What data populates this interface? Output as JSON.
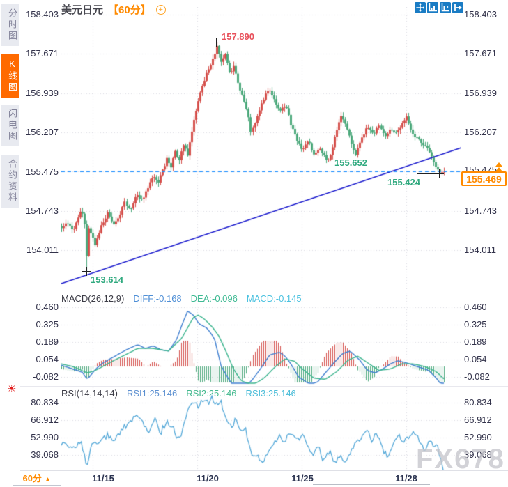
{
  "colors": {
    "accent_orange": "#ff8a00",
    "active_tab": "#ff6a00",
    "candle_up": "#d5504c",
    "candle_down": "#4da97c",
    "trendline": "#1414cc",
    "dashed_level": "#2090ff",
    "diff_line": "#3f7fd0",
    "dea_line": "#3bb48e",
    "hist_up": "#d5504c",
    "hist_down": "#4da97c",
    "rsi_line": "#54a8d8",
    "grid": "#d9d9e2",
    "toolbar_icon_bg": "#1a7cc4",
    "annotation_green": "#2fa97e",
    "annotation_red": "#e8505a"
  },
  "sidebar": {
    "tabs": [
      {
        "label": "分时图",
        "active": false
      },
      {
        "label": "K线图",
        "active": true
      },
      {
        "label": "闪电图",
        "active": false
      },
      {
        "label": "合约资料",
        "active": false
      }
    ],
    "settings_icon": "☀"
  },
  "header": {
    "title": "美元日元",
    "interval_tag": "【60分】",
    "add_icon": "+"
  },
  "toolbar": {
    "icons": [
      "pan-icon",
      "fit-x-icon",
      "fit-y-icon",
      "go-latest-icon"
    ]
  },
  "price_panel": {
    "axis_labels": [
      "158.403",
      "157.671",
      "156.939",
      "156.207",
      "155.475",
      "154.743",
      "154.011"
    ],
    "annotations": {
      "high": "157.890",
      "swing_low": "153.614",
      "support_low": "155.652",
      "last_low": "155.424"
    },
    "current_price": "155.469",
    "marked_level": "155.475"
  },
  "macd_panel": {
    "title": "MACD(26,12,9)",
    "diff_label": "DIFF:-0.168",
    "dea_label": "DEA:-0.096",
    "macd_label": "MACD:-0.145",
    "axis_labels": [
      "0.460",
      "0.325",
      "0.189",
      "0.054",
      "-0.082"
    ]
  },
  "rsi_panel": {
    "title": "RSI(14,14,14)",
    "rsi1_label": "RSI1:25.146",
    "rsi2_label": "RSI2:25.146",
    "rsi3_label": "RSI3:25.146",
    "axis_labels": [
      "80.834",
      "66.912",
      "52.990",
      "39.068"
    ]
  },
  "footer": {
    "interval_label": "60分",
    "interval_arrow": "▲",
    "dates": [
      "11/15",
      "11/20",
      "11/25",
      "11/28"
    ]
  },
  "watermark": "FX678",
  "chart_data": [
    {
      "type": "candlestick",
      "title": "美元日元 60分",
      "x_dates": [
        "11/15",
        "11/20",
        "11/25",
        "11/28"
      ],
      "y_ticks": [
        158.403,
        157.671,
        156.939,
        156.207,
        155.475,
        154.743,
        154.011
      ],
      "ylim": [
        153.387,
        158.53
      ],
      "num_candles": 183,
      "key_points": {
        "high": 157.89,
        "swing_low": 153.614,
        "support_low": 155.652,
        "last_low": 155.424,
        "last_close": 155.469,
        "dashed_level": 155.475
      },
      "trendline": [
        [
          0.0,
          153.387
        ],
        [
          1.0,
          155.921
        ]
      ],
      "close_anchors": [
        [
          0.0,
          154.42
        ],
        [
          0.015,
          154.52
        ],
        [
          0.03,
          154.36
        ],
        [
          0.042,
          154.58
        ],
        [
          0.052,
          154.78
        ],
        [
          0.06,
          154.48
        ],
        [
          0.066,
          154.4
        ],
        [
          0.068,
          153.9
        ],
        [
          0.075,
          154.35
        ],
        [
          0.088,
          154.12
        ],
        [
          0.105,
          154.48
        ],
        [
          0.122,
          154.72
        ],
        [
          0.135,
          154.5
        ],
        [
          0.15,
          154.62
        ],
        [
          0.165,
          154.9
        ],
        [
          0.18,
          154.78
        ],
        [
          0.195,
          155.06
        ],
        [
          0.21,
          154.94
        ],
        [
          0.225,
          155.18
        ],
        [
          0.24,
          155.38
        ],
        [
          0.252,
          155.26
        ],
        [
          0.265,
          155.52
        ],
        [
          0.275,
          155.72
        ],
        [
          0.285,
          155.56
        ],
        [
          0.297,
          155.86
        ],
        [
          0.307,
          155.68
        ],
        [
          0.32,
          156.0
        ],
        [
          0.33,
          155.78
        ],
        [
          0.345,
          156.42
        ],
        [
          0.36,
          156.88
        ],
        [
          0.375,
          157.22
        ],
        [
          0.39,
          157.48
        ],
        [
          0.4,
          157.66
        ],
        [
          0.408,
          157.82
        ],
        [
          0.418,
          157.5
        ],
        [
          0.428,
          157.68
        ],
        [
          0.44,
          157.3
        ],
        [
          0.452,
          157.45
        ],
        [
          0.465,
          157.05
        ],
        [
          0.478,
          156.8
        ],
        [
          0.49,
          156.45
        ],
        [
          0.496,
          156.16
        ],
        [
          0.51,
          156.52
        ],
        [
          0.525,
          156.78
        ],
        [
          0.54,
          157.02
        ],
        [
          0.555,
          156.84
        ],
        [
          0.57,
          156.58
        ],
        [
          0.585,
          156.72
        ],
        [
          0.6,
          156.34
        ],
        [
          0.615,
          156.08
        ],
        [
          0.63,
          155.86
        ],
        [
          0.645,
          156.06
        ],
        [
          0.66,
          155.78
        ],
        [
          0.675,
          155.92
        ],
        [
          0.69,
          155.72
        ],
        [
          0.7,
          155.68
        ],
        [
          0.715,
          156.12
        ],
        [
          0.73,
          156.55
        ],
        [
          0.742,
          156.35
        ],
        [
          0.755,
          156.08
        ],
        [
          0.768,
          155.78
        ],
        [
          0.782,
          156.06
        ],
        [
          0.8,
          156.3
        ],
        [
          0.815,
          156.18
        ],
        [
          0.83,
          156.32
        ],
        [
          0.845,
          156.14
        ],
        [
          0.86,
          156.28
        ],
        [
          0.875,
          156.18
        ],
        [
          0.89,
          156.36
        ],
        [
          0.9,
          156.5
        ],
        [
          0.915,
          156.22
        ],
        [
          0.93,
          156.08
        ],
        [
          0.945,
          155.98
        ],
        [
          0.96,
          155.86
        ],
        [
          0.975,
          155.62
        ],
        [
          0.99,
          155.46
        ],
        [
          1.0,
          155.47
        ]
      ]
    },
    {
      "type": "bar",
      "name": "MACD(26,12,9)",
      "diff": -0.168,
      "dea": -0.096,
      "macd": -0.145,
      "y_ticks": [
        0.46,
        0.325,
        0.189,
        0.054,
        -0.082
      ],
      "diff_anchors": [
        [
          0.0,
          0.01
        ],
        [
          0.03,
          -0.02
        ],
        [
          0.055,
          -0.045
        ],
        [
          0.068,
          -0.1
        ],
        [
          0.09,
          -0.02
        ],
        [
          0.11,
          0.03
        ],
        [
          0.14,
          0.08
        ],
        [
          0.17,
          0.13
        ],
        [
          0.2,
          0.17
        ],
        [
          0.22,
          0.14
        ],
        [
          0.24,
          0.16
        ],
        [
          0.26,
          0.13
        ],
        [
          0.28,
          0.12
        ],
        [
          0.3,
          0.2
        ],
        [
          0.315,
          0.32
        ],
        [
          0.33,
          0.43
        ],
        [
          0.345,
          0.4
        ],
        [
          0.36,
          0.33
        ],
        [
          0.38,
          0.3
        ],
        [
          0.4,
          0.22
        ],
        [
          0.418,
          0.0
        ],
        [
          0.43,
          -0.06
        ],
        [
          0.45,
          -0.16
        ],
        [
          0.48,
          -0.165
        ],
        [
          0.5,
          -0.1
        ],
        [
          0.52,
          -0.02
        ],
        [
          0.545,
          0.09
        ],
        [
          0.57,
          0.11
        ],
        [
          0.585,
          0.08
        ],
        [
          0.6,
          0.02
        ],
        [
          0.62,
          -0.08
        ],
        [
          0.65,
          -0.14
        ],
        [
          0.67,
          -0.12
        ],
        [
          0.69,
          -0.05
        ],
        [
          0.71,
          0.02
        ],
        [
          0.735,
          0.1
        ],
        [
          0.755,
          0.12
        ],
        [
          0.78,
          0.05
        ],
        [
          0.8,
          -0.03
        ],
        [
          0.82,
          -0.05
        ],
        [
          0.84,
          -0.02
        ],
        [
          0.86,
          0.02
        ],
        [
          0.88,
          0.045
        ],
        [
          0.9,
          0.03
        ],
        [
          0.92,
          0.01
        ],
        [
          0.94,
          -0.01
        ],
        [
          0.96,
          -0.03
        ],
        [
          0.98,
          -0.09
        ],
        [
          1.0,
          -0.168
        ]
      ],
      "dea_anchors": [
        [
          0.0,
          0.02
        ],
        [
          0.03,
          0.0
        ],
        [
          0.068,
          -0.05
        ],
        [
          0.09,
          -0.03
        ],
        [
          0.12,
          0.02
        ],
        [
          0.16,
          0.08
        ],
        [
          0.2,
          0.14
        ],
        [
          0.24,
          0.14
        ],
        [
          0.28,
          0.12
        ],
        [
          0.315,
          0.22
        ],
        [
          0.345,
          0.38
        ],
        [
          0.358,
          0.4
        ],
        [
          0.375,
          0.365
        ],
        [
          0.395,
          0.305
        ],
        [
          0.412,
          0.235
        ],
        [
          0.43,
          0.12
        ],
        [
          0.45,
          -0.02
        ],
        [
          0.47,
          -0.11
        ],
        [
          0.5,
          -0.145
        ],
        [
          0.53,
          -0.09
        ],
        [
          0.56,
          0.0
        ],
        [
          0.585,
          0.06
        ],
        [
          0.61,
          0.04
        ],
        [
          0.63,
          -0.02
        ],
        [
          0.66,
          -0.09
        ],
        [
          0.69,
          -0.1
        ],
        [
          0.72,
          -0.04
        ],
        [
          0.75,
          0.05
        ],
        [
          0.775,
          0.08
        ],
        [
          0.8,
          0.03
        ],
        [
          0.83,
          -0.03
        ],
        [
          0.86,
          -0.02
        ],
        [
          0.89,
          0.02
        ],
        [
          0.92,
          0.02
        ],
        [
          0.95,
          0.0
        ],
        [
          0.98,
          -0.04
        ],
        [
          1.0,
          -0.096
        ]
      ],
      "histogram_rule": "2*(diff-dea)"
    },
    {
      "type": "line",
      "name": "RSI(14,14,14)",
      "rsi1": 25.146,
      "rsi2": 25.146,
      "rsi3": 25.146,
      "y_ticks": [
        80.834,
        66.912,
        52.99,
        39.068
      ],
      "anchors": [
        [
          0.0,
          48
        ],
        [
          0.03,
          44
        ],
        [
          0.05,
          50
        ],
        [
          0.062,
          36
        ],
        [
          0.068,
          29
        ],
        [
          0.08,
          50
        ],
        [
          0.1,
          49
        ],
        [
          0.12,
          55
        ],
        [
          0.14,
          51
        ],
        [
          0.16,
          60
        ],
        [
          0.18,
          66
        ],
        [
          0.2,
          72
        ],
        [
          0.215,
          64
        ],
        [
          0.23,
          57
        ],
        [
          0.245,
          68
        ],
        [
          0.258,
          56
        ],
        [
          0.275,
          66
        ],
        [
          0.29,
          62
        ],
        [
          0.305,
          52
        ],
        [
          0.315,
          57
        ],
        [
          0.33,
          76
        ],
        [
          0.345,
          82
        ],
        [
          0.36,
          78
        ],
        [
          0.372,
          84
        ],
        [
          0.385,
          80
        ],
        [
          0.395,
          85
        ],
        [
          0.405,
          79
        ],
        [
          0.415,
          83
        ],
        [
          0.43,
          70
        ],
        [
          0.445,
          62
        ],
        [
          0.455,
          67
        ],
        [
          0.468,
          57
        ],
        [
          0.48,
          62
        ],
        [
          0.495,
          42
        ],
        [
          0.51,
          38
        ],
        [
          0.525,
          34
        ],
        [
          0.54,
          41
        ],
        [
          0.555,
          47
        ],
        [
          0.57,
          55
        ],
        [
          0.582,
          49
        ],
        [
          0.6,
          58
        ],
        [
          0.615,
          50
        ],
        [
          0.63,
          55
        ],
        [
          0.645,
          46
        ],
        [
          0.66,
          40
        ],
        [
          0.672,
          45
        ],
        [
          0.685,
          35
        ],
        [
          0.7,
          42
        ],
        [
          0.715,
          33
        ],
        [
          0.73,
          40
        ],
        [
          0.745,
          32
        ],
        [
          0.76,
          44
        ],
        [
          0.78,
          52
        ],
        [
          0.8,
          58
        ],
        [
          0.812,
          51
        ],
        [
          0.825,
          56
        ],
        [
          0.84,
          44
        ],
        [
          0.855,
          37
        ],
        [
          0.87,
          50
        ],
        [
          0.882,
          56
        ],
        [
          0.895,
          49
        ],
        [
          0.91,
          54
        ],
        [
          0.925,
          58
        ],
        [
          0.94,
          49
        ],
        [
          0.95,
          43
        ],
        [
          0.962,
          52
        ],
        [
          0.972,
          45
        ],
        [
          0.982,
          48
        ],
        [
          1.0,
          25.1
        ]
      ]
    }
  ]
}
